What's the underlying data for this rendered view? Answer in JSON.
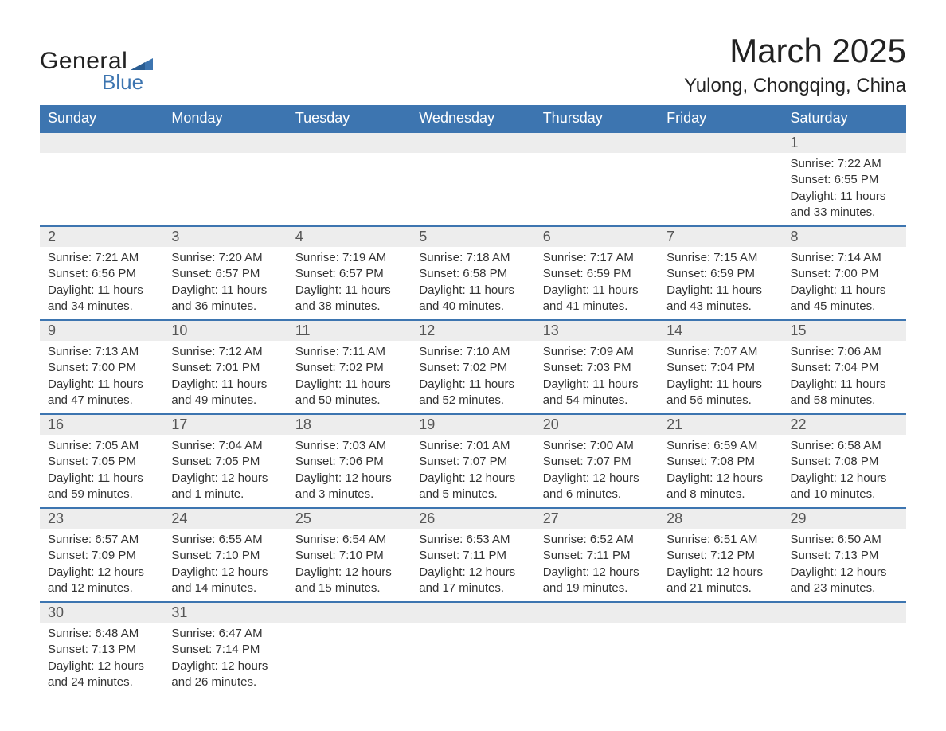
{
  "brand": {
    "word1": "General",
    "word2": "Blue",
    "flag_color": "#3d75b0",
    "text_color": "#222222"
  },
  "title": "March 2025",
  "location": "Yulong, Chongqing, China",
  "colors": {
    "header_bg": "#3d75b0",
    "header_text": "#ffffff",
    "daynum_bg": "#ededed",
    "daynum_text": "#555555",
    "body_text": "#333333",
    "border": "#3d75b0",
    "page_bg": "#ffffff"
  },
  "typography": {
    "month_title_fontsize": 42,
    "location_fontsize": 24,
    "weekday_fontsize": 18,
    "daynum_fontsize": 18,
    "detail_fontsize": 15
  },
  "weekdays": [
    "Sunday",
    "Monday",
    "Tuesday",
    "Wednesday",
    "Thursday",
    "Friday",
    "Saturday"
  ],
  "weeks": [
    {
      "nums": [
        "",
        "",
        "",
        "",
        "",
        "",
        "1"
      ],
      "lines": [
        [],
        [],
        [],
        [],
        [],
        [],
        [
          "Sunrise: 7:22 AM",
          "Sunset: 6:55 PM",
          "Daylight: 11 hours",
          "and 33 minutes."
        ]
      ]
    },
    {
      "nums": [
        "2",
        "3",
        "4",
        "5",
        "6",
        "7",
        "8"
      ],
      "lines": [
        [
          "Sunrise: 7:21 AM",
          "Sunset: 6:56 PM",
          "Daylight: 11 hours",
          "and 34 minutes."
        ],
        [
          "Sunrise: 7:20 AM",
          "Sunset: 6:57 PM",
          "Daylight: 11 hours",
          "and 36 minutes."
        ],
        [
          "Sunrise: 7:19 AM",
          "Sunset: 6:57 PM",
          "Daylight: 11 hours",
          "and 38 minutes."
        ],
        [
          "Sunrise: 7:18 AM",
          "Sunset: 6:58 PM",
          "Daylight: 11 hours",
          "and 40 minutes."
        ],
        [
          "Sunrise: 7:17 AM",
          "Sunset: 6:59 PM",
          "Daylight: 11 hours",
          "and 41 minutes."
        ],
        [
          "Sunrise: 7:15 AM",
          "Sunset: 6:59 PM",
          "Daylight: 11 hours",
          "and 43 minutes."
        ],
        [
          "Sunrise: 7:14 AM",
          "Sunset: 7:00 PM",
          "Daylight: 11 hours",
          "and 45 minutes."
        ]
      ]
    },
    {
      "nums": [
        "9",
        "10",
        "11",
        "12",
        "13",
        "14",
        "15"
      ],
      "lines": [
        [
          "Sunrise: 7:13 AM",
          "Sunset: 7:00 PM",
          "Daylight: 11 hours",
          "and 47 minutes."
        ],
        [
          "Sunrise: 7:12 AM",
          "Sunset: 7:01 PM",
          "Daylight: 11 hours",
          "and 49 minutes."
        ],
        [
          "Sunrise: 7:11 AM",
          "Sunset: 7:02 PM",
          "Daylight: 11 hours",
          "and 50 minutes."
        ],
        [
          "Sunrise: 7:10 AM",
          "Sunset: 7:02 PM",
          "Daylight: 11 hours",
          "and 52 minutes."
        ],
        [
          "Sunrise: 7:09 AM",
          "Sunset: 7:03 PM",
          "Daylight: 11 hours",
          "and 54 minutes."
        ],
        [
          "Sunrise: 7:07 AM",
          "Sunset: 7:04 PM",
          "Daylight: 11 hours",
          "and 56 minutes."
        ],
        [
          "Sunrise: 7:06 AM",
          "Sunset: 7:04 PM",
          "Daylight: 11 hours",
          "and 58 minutes."
        ]
      ]
    },
    {
      "nums": [
        "16",
        "17",
        "18",
        "19",
        "20",
        "21",
        "22"
      ],
      "lines": [
        [
          "Sunrise: 7:05 AM",
          "Sunset: 7:05 PM",
          "Daylight: 11 hours",
          "and 59 minutes."
        ],
        [
          "Sunrise: 7:04 AM",
          "Sunset: 7:05 PM",
          "Daylight: 12 hours",
          "and 1 minute."
        ],
        [
          "Sunrise: 7:03 AM",
          "Sunset: 7:06 PM",
          "Daylight: 12 hours",
          "and 3 minutes."
        ],
        [
          "Sunrise: 7:01 AM",
          "Sunset: 7:07 PM",
          "Daylight: 12 hours",
          "and 5 minutes."
        ],
        [
          "Sunrise: 7:00 AM",
          "Sunset: 7:07 PM",
          "Daylight: 12 hours",
          "and 6 minutes."
        ],
        [
          "Sunrise: 6:59 AM",
          "Sunset: 7:08 PM",
          "Daylight: 12 hours",
          "and 8 minutes."
        ],
        [
          "Sunrise: 6:58 AM",
          "Sunset: 7:08 PM",
          "Daylight: 12 hours",
          "and 10 minutes."
        ]
      ]
    },
    {
      "nums": [
        "23",
        "24",
        "25",
        "26",
        "27",
        "28",
        "29"
      ],
      "lines": [
        [
          "Sunrise: 6:57 AM",
          "Sunset: 7:09 PM",
          "Daylight: 12 hours",
          "and 12 minutes."
        ],
        [
          "Sunrise: 6:55 AM",
          "Sunset: 7:10 PM",
          "Daylight: 12 hours",
          "and 14 minutes."
        ],
        [
          "Sunrise: 6:54 AM",
          "Sunset: 7:10 PM",
          "Daylight: 12 hours",
          "and 15 minutes."
        ],
        [
          "Sunrise: 6:53 AM",
          "Sunset: 7:11 PM",
          "Daylight: 12 hours",
          "and 17 minutes."
        ],
        [
          "Sunrise: 6:52 AM",
          "Sunset: 7:11 PM",
          "Daylight: 12 hours",
          "and 19 minutes."
        ],
        [
          "Sunrise: 6:51 AM",
          "Sunset: 7:12 PM",
          "Daylight: 12 hours",
          "and 21 minutes."
        ],
        [
          "Sunrise: 6:50 AM",
          "Sunset: 7:13 PM",
          "Daylight: 12 hours",
          "and 23 minutes."
        ]
      ]
    },
    {
      "nums": [
        "30",
        "31",
        "",
        "",
        "",
        "",
        ""
      ],
      "lines": [
        [
          "Sunrise: 6:48 AM",
          "Sunset: 7:13 PM",
          "Daylight: 12 hours",
          "and 24 minutes."
        ],
        [
          "Sunrise: 6:47 AM",
          "Sunset: 7:14 PM",
          "Daylight: 12 hours",
          "and 26 minutes."
        ],
        [],
        [],
        [],
        [],
        []
      ]
    }
  ]
}
